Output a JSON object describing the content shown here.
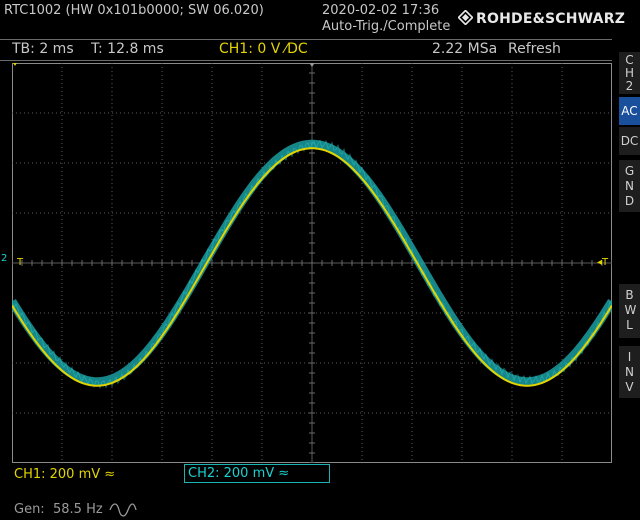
{
  "header": {
    "device": "RTC1002 (HW 0x101b0000; SW 06.020)",
    "datetime": "2020-02-02 17:36",
    "trigger_state": "Auto-Trig./Complete",
    "brand": "ROHDE&SCHWARZ"
  },
  "status": {
    "timebase": "TB: 2 ms",
    "trigger_time": "T: 12.8 ms",
    "ch1_trigger": "CH1: 0 V ⁄DC",
    "sample_rate": "2.22 MSa",
    "mode": "Refresh"
  },
  "side_menu": {
    "channel": "CH2",
    "ac": "AC",
    "dc": "DC",
    "gnd": "GND",
    "bwl": "BWL",
    "inv": "INV"
  },
  "bottom": {
    "ch1_scale": "CH1: 200 mV ≈",
    "ch2_scale": "CH2: 200 mV ≈",
    "gen_label": "Gen:",
    "gen_freq": "58.5 Hz",
    "gen_wave_icon": "sine-wave-icon"
  },
  "markers": {
    "ch2_ref": "2",
    "trigger_left": "T",
    "trigger_right": "◂T"
  },
  "colors": {
    "ch1": "#e3d400",
    "ch2": "#1ab3b3",
    "grid": "#5a5a5a",
    "active_button": "#1a4f9c"
  }
}
